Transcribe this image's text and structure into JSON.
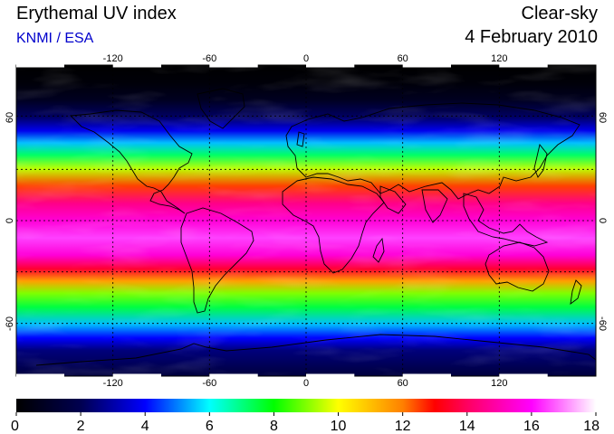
{
  "header": {
    "title": "Erythemal UV index",
    "organization": "KNMI / ESA",
    "mode": "Clear-sky",
    "date": "4 February 2010"
  },
  "map": {
    "projection": "equirectangular",
    "lon_range": [
      -180,
      180
    ],
    "lat_range": [
      -90,
      90
    ],
    "lon_ticks": [
      "-120",
      "-60",
      "0",
      "60",
      "120"
    ],
    "lat_ticks": [
      "60",
      "0",
      "-60"
    ],
    "gridlines": "dashed",
    "zonal_uv_profile": [
      {
        "lat": 90,
        "uv": 0
      },
      {
        "lat": 80,
        "uv": 0.2
      },
      {
        "lat": 70,
        "uv": 0.8
      },
      {
        "lat": 60,
        "uv": 2.2
      },
      {
        "lat": 52,
        "uv": 3.8
      },
      {
        "lat": 45,
        "uv": 5.5
      },
      {
        "lat": 38,
        "uv": 7.2
      },
      {
        "lat": 30,
        "uv": 9.5
      },
      {
        "lat": 20,
        "uv": 12.5
      },
      {
        "lat": 10,
        "uv": 14.5
      },
      {
        "lat": 0,
        "uv": 15.5
      },
      {
        "lat": -10,
        "uv": 16.5
      },
      {
        "lat": -20,
        "uv": 15.5
      },
      {
        "lat": -28,
        "uv": 13.5
      },
      {
        "lat": -35,
        "uv": 11.5
      },
      {
        "lat": -42,
        "uv": 9.0
      },
      {
        "lat": -50,
        "uv": 7.5
      },
      {
        "lat": -60,
        "uv": 5.5
      },
      {
        "lat": -68,
        "uv": 4.0
      },
      {
        "lat": -75,
        "uv": 2.5
      },
      {
        "lat": -90,
        "uv": 1.5
      }
    ]
  },
  "colorbar": {
    "min": 0,
    "max": 18,
    "labels": [
      "0",
      "2",
      "4",
      "6",
      "8",
      "10",
      "12",
      "14",
      "16",
      "18"
    ],
    "color_stops": [
      {
        "value": 0,
        "color": "#000000"
      },
      {
        "value": 2,
        "color": "#000050"
      },
      {
        "value": 4,
        "color": "#0000ff"
      },
      {
        "value": 6,
        "color": "#00ffff"
      },
      {
        "value": 8,
        "color": "#00ff00"
      },
      {
        "value": 10,
        "color": "#ffff00"
      },
      {
        "value": 12,
        "color": "#ff8000"
      },
      {
        "value": 13,
        "color": "#ff0000"
      },
      {
        "value": 14,
        "color": "#ff0060"
      },
      {
        "value": 16,
        "color": "#ff00ff"
      },
      {
        "value": 18,
        "color": "#ffffff"
      }
    ]
  }
}
